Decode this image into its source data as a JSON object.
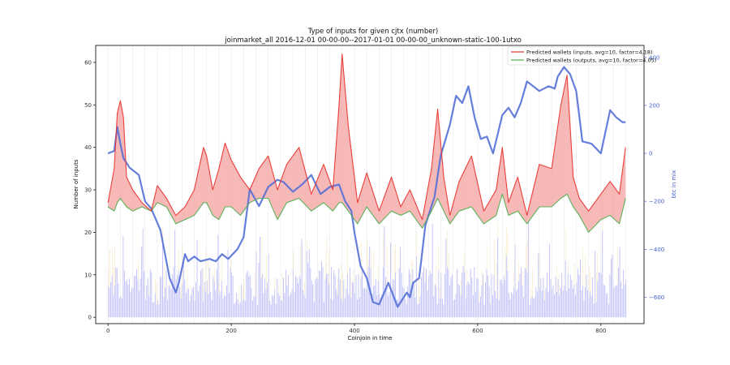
{
  "chart_data": {
    "type": "line",
    "title": "Type of inputs for given cjtx (number)",
    "subtitle": "joinmarket_all 2016-12-01 00-00-00--2017-01-01 00-00-00_unknown-static-100-1utxo",
    "xlabel": "Coinjoin in time",
    "ylabel": "Number of inputs",
    "y2label": "btc in mix",
    "xlim": [
      -20,
      870
    ],
    "ylim": [
      -1.5,
      64
    ],
    "y2lim": [
      -710,
      450
    ],
    "xticks": [
      0,
      200,
      400,
      600,
      800
    ],
    "yticks": [
      0,
      10,
      20,
      30,
      40,
      50,
      60
    ],
    "y2ticks": [
      -600,
      -400,
      -200,
      0,
      200,
      400
    ],
    "legend_position": "top-right",
    "grid": false,
    "series": [
      {
        "name": "Predicted wallets (inputs, avg=10, factor=4.18)",
        "color": "#e8302a",
        "axis": "left",
        "x": [
          0,
          10,
          15,
          20,
          25,
          30,
          40,
          55,
          70,
          80,
          95,
          110,
          125,
          140,
          155,
          160,
          170,
          180,
          190,
          200,
          215,
          230,
          245,
          260,
          275,
          290,
          310,
          330,
          350,
          365,
          375,
          380,
          390,
          405,
          420,
          440,
          460,
          475,
          490,
          510,
          525,
          535,
          545,
          555,
          570,
          590,
          610,
          630,
          640,
          650,
          665,
          680,
          700,
          720,
          735,
          745,
          755,
          765,
          780,
          800,
          815,
          830,
          840
        ],
        "values": [
          27,
          35,
          48,
          51,
          47,
          33,
          30,
          27,
          25,
          31,
          28,
          24,
          26,
          30,
          40,
          38,
          30,
          35,
          41,
          37,
          33,
          30,
          35,
          38,
          30,
          36,
          40,
          29,
          36,
          30,
          50,
          62,
          45,
          27,
          34,
          25,
          33,
          26,
          30,
          23,
          35,
          49,
          33,
          24,
          32,
          38,
          25,
          30,
          40,
          27,
          33,
          24,
          36,
          35,
          50,
          57,
          33,
          28,
          25,
          29,
          32,
          29,
          40
        ]
      },
      {
        "name": "Predicted wallets (outputs, avg=10, factor=4.05)",
        "color": "#4cae4c",
        "axis": "left",
        "x": [
          0,
          10,
          15,
          20,
          25,
          30,
          40,
          55,
          70,
          80,
          95,
          110,
          125,
          140,
          155,
          160,
          170,
          180,
          190,
          200,
          215,
          230,
          245,
          260,
          275,
          290,
          310,
          330,
          350,
          365,
          375,
          380,
          390,
          405,
          420,
          440,
          460,
          475,
          490,
          510,
          525,
          535,
          545,
          555,
          570,
          590,
          610,
          630,
          640,
          650,
          665,
          680,
          700,
          720,
          735,
          745,
          755,
          765,
          780,
          800,
          815,
          830,
          840
        ],
        "values": [
          26,
          25,
          27,
          28,
          27,
          26,
          25,
          26,
          25,
          27,
          26,
          22,
          23,
          24,
          27,
          27,
          24,
          23,
          26,
          26,
          24,
          27,
          28,
          28,
          23,
          27,
          28,
          25,
          27,
          25,
          27,
          27,
          25,
          22,
          26,
          22,
          25,
          24,
          25,
          21,
          25,
          28,
          25,
          22,
          25,
          26,
          22,
          24,
          29,
          24,
          25,
          22,
          26,
          26,
          28,
          29,
          26,
          24,
          20,
          23,
          24,
          22,
          28
        ]
      },
      {
        "name": "",
        "color": "#5470d6",
        "axis": "right",
        "x": [
          0,
          10,
          15,
          20,
          25,
          35,
          50,
          60,
          70,
          85,
          100,
          105,
          110,
          115,
          125,
          130,
          140,
          150,
          165,
          175,
          185,
          195,
          210,
          220,
          230,
          245,
          260,
          275,
          285,
          300,
          315,
          330,
          345,
          360,
          375,
          385,
          395,
          400,
          410,
          420,
          430,
          440,
          455,
          470,
          485,
          490,
          495,
          505,
          515,
          530,
          540,
          555,
          565,
          575,
          585,
          595,
          605,
          615,
          625,
          640,
          650,
          660,
          670,
          680,
          690,
          700,
          715,
          725,
          730,
          740,
          750,
          760,
          770,
          785,
          800,
          815,
          825,
          835,
          840
        ],
        "values": [
          0,
          10,
          110,
          40,
          -20,
          -60,
          -90,
          -200,
          -230,
          -320,
          -520,
          -550,
          -580,
          -540,
          -420,
          -450,
          -430,
          -450,
          -440,
          -450,
          -420,
          -440,
          -400,
          -350,
          -150,
          -220,
          -140,
          -110,
          -120,
          -160,
          -130,
          -90,
          -170,
          -140,
          -130,
          -200,
          -240,
          -330,
          -470,
          -520,
          -620,
          -630,
          -540,
          -640,
          -580,
          -600,
          -540,
          -520,
          -300,
          -180,
          -10,
          120,
          240,
          210,
          280,
          150,
          60,
          70,
          0,
          160,
          190,
          150,
          210,
          300,
          280,
          260,
          280,
          270,
          320,
          360,
          330,
          260,
          50,
          40,
          0,
          180,
          150,
          130,
          130
        ]
      }
    ],
    "annotations": []
  }
}
